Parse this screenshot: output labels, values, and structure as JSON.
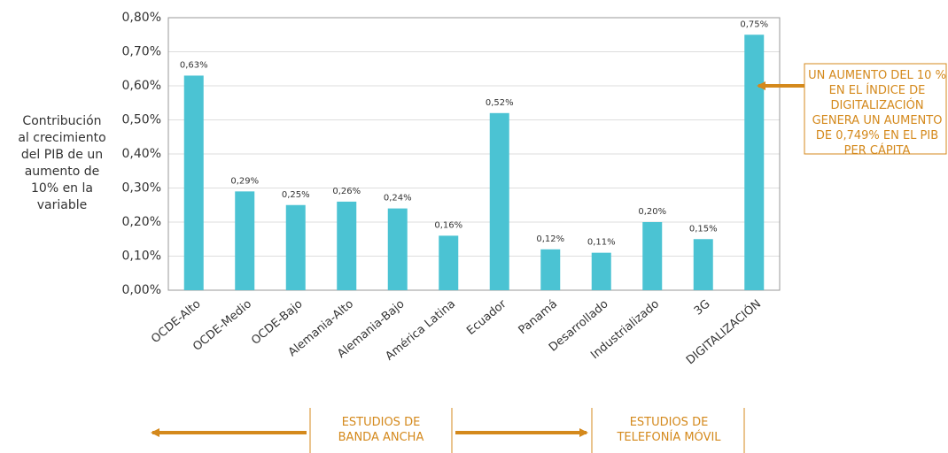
{
  "chart_data": {
    "type": "bar",
    "y_label": "Contribución al crecimiento del PIB de un aumento de 10% en la variable",
    "categories": [
      "OCDE-Alto",
      "OCDE-Medio",
      "OCDE-Bajo",
      "Alemania-Alto",
      "Alemania-Bajo",
      "América Latina",
      "Ecuador",
      "Panamá",
      "Desarrollado",
      "Industrializado",
      "3G",
      "DIGITALIZACIÓN"
    ],
    "values": [
      0.63,
      0.29,
      0.25,
      0.26,
      0.24,
      0.16,
      0.52,
      0.12,
      0.11,
      0.2,
      0.15,
      0.75
    ],
    "value_labels": [
      "0,63%",
      "0,29%",
      "0,25%",
      "0,26%",
      "0,24%",
      "0,16%",
      "0,52%",
      "0,12%",
      "0,11%",
      "0,20%",
      "0,15%",
      "0,75%"
    ],
    "color": "#4bc3d3",
    "ylim": [
      0,
      0.8
    ],
    "yticks": [
      {
        "value": 0,
        "label": "0,00%"
      },
      {
        "value": 0.1,
        "label": "0,10%"
      },
      {
        "value": 0.2,
        "label": "0,20%"
      },
      {
        "value": 0.3,
        "label": "0,30%"
      },
      {
        "value": 0.4,
        "label": "0,40%"
      },
      {
        "value": 0.5,
        "label": "0,50%"
      },
      {
        "value": 0.6,
        "label": "0,60%"
      },
      {
        "value": 0.7,
        "label": "0,70%"
      },
      {
        "value": 0.8,
        "label": "0,80%"
      }
    ],
    "grid": true,
    "annotations": [
      "UN AUMENTO DEL 10 % EN EL ÍNDICE DE DIGITALIZACIÓN GENERA UN AUMENTO DE 0,749% EN EL PIB PER CÁPITA",
      "ESTUDIOS DE BANDA ANCHA",
      "ESTUDIOS DE TELEFONÍA MÓVIL"
    ]
  }
}
